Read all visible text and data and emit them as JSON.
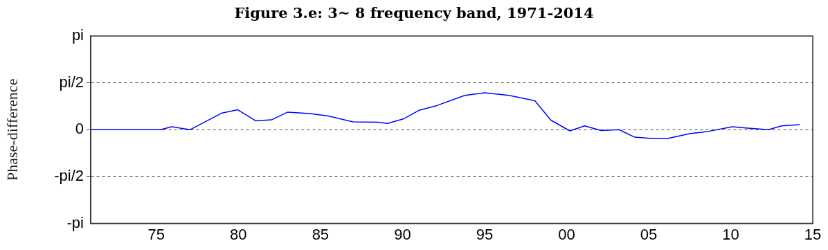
{
  "chart_data": {
    "type": "line",
    "title": "Figure 3.e: 3~ 8 frequency band, 1971-2014",
    "ylabel": "Phase-difference",
    "x": [
      1971,
      1975.25,
      1975.94,
      1977.05,
      1979.0,
      1979.95,
      1981.05,
      1982.02,
      1983.0,
      1984.37,
      1985.48,
      1987.0,
      1988.5,
      1989.08,
      1990.05,
      1991.0,
      1992.1,
      1993.8,
      1995.0,
      1996.5,
      1998.07,
      1999.04,
      2000.2,
      2001.1,
      2002.1,
      2003.2,
      2004.15,
      2005.1,
      2006.2,
      2007.5,
      2008.6,
      2010.1,
      2010.9,
      2012.3,
      2013.1,
      2014.2
    ],
    "series": [
      {
        "color": "#0000ff",
        "values": [
          0,
          0,
          0.1,
          0,
          0.56,
          0.67,
          0.3,
          0.33,
          0.59,
          0.54,
          0.46,
          0.26,
          0.25,
          0.21,
          0.36,
          0.65,
          0.81,
          1.15,
          1.24,
          1.15,
          0.97,
          0.32,
          -0.04,
          0.13,
          -0.03,
          0,
          -0.25,
          -0.29,
          -0.29,
          -0.13,
          -0.06,
          0.1,
          0.06,
          0,
          0.13,
          0.17
        ]
      }
    ],
    "xlim": [
      1971,
      2015
    ],
    "xticks": [
      {
        "value": 1975,
        "label": "75"
      },
      {
        "value": 1980,
        "label": "80"
      },
      {
        "value": 1985,
        "label": "85"
      },
      {
        "value": 1990,
        "label": "90"
      },
      {
        "value": 1995,
        "label": "95"
      },
      {
        "value": 2000,
        "label": "00"
      },
      {
        "value": 2005,
        "label": "05"
      },
      {
        "value": 2010,
        "label": "10"
      },
      {
        "value": 2015,
        "label": "15"
      }
    ],
    "ylim": [
      -3.14159,
      3.14159
    ],
    "yticks": [
      {
        "value": -3.14159,
        "label": "-pi"
      },
      {
        "value": -1.5708,
        "label": "-pi/2"
      },
      {
        "value": 0,
        "label": "0"
      },
      {
        "value": 1.5708,
        "label": "pi/2"
      },
      {
        "value": 3.14159,
        "label": "pi"
      }
    ],
    "grid": "y",
    "line_style": "solid",
    "marker": "none",
    "legend": false
  }
}
